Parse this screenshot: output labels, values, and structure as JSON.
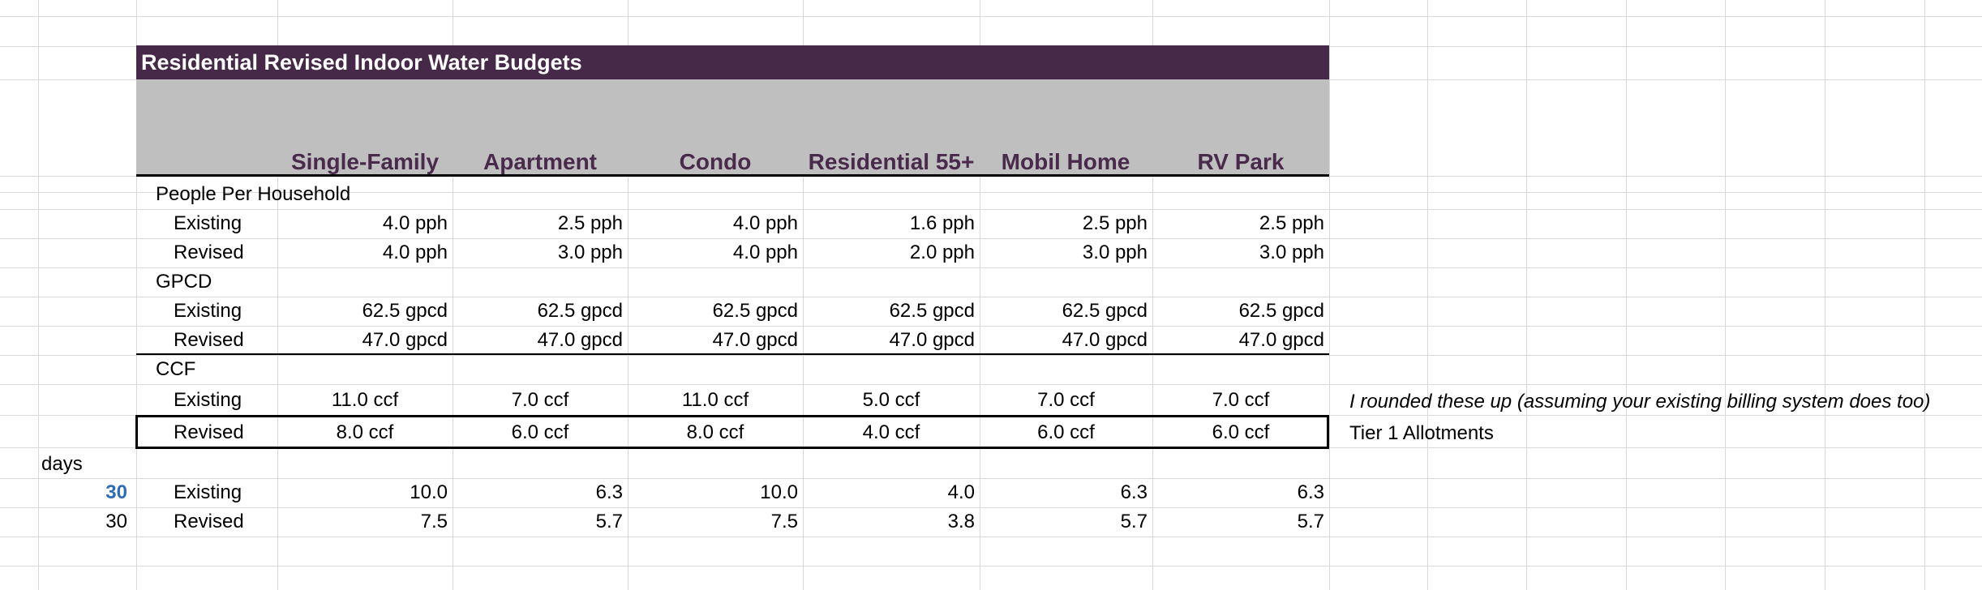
{
  "title": "Residential Revised Indoor Water Budgets",
  "columns": [
    "Single-Family",
    "Apartment",
    "Condo",
    "Residential 55+",
    "Mobil Home",
    "RV Park"
  ],
  "sections": {
    "pph": {
      "label": "People Per Household",
      "existing": {
        "label": "Existing",
        "values": [
          "4.0 pph",
          "2.5 pph",
          "4.0 pph",
          "1.6 pph",
          "2.5 pph",
          "2.5 pph"
        ]
      },
      "revised": {
        "label": "Revised",
        "values": [
          "4.0 pph",
          "3.0 pph",
          "4.0 pph",
          "2.0 pph",
          "3.0 pph",
          "3.0 pph"
        ]
      }
    },
    "gpcd": {
      "label": "GPCD",
      "existing": {
        "label": "Existing",
        "values": [
          "62.5 gpcd",
          "62.5 gpcd",
          "62.5 gpcd",
          "62.5 gpcd",
          "62.5 gpcd",
          "62.5 gpcd"
        ]
      },
      "revised": {
        "label": "Revised",
        "values": [
          "47.0 gpcd",
          "47.0 gpcd",
          "47.0 gpcd",
          "47.0 gpcd",
          "47.0 gpcd",
          "47.0 gpcd"
        ]
      }
    },
    "ccf": {
      "label": "CCF",
      "existing": {
        "label": "Existing",
        "values": [
          "11.0 ccf",
          "7.0 ccf",
          "11.0 ccf",
          "5.0 ccf",
          "7.0 ccf",
          "7.0 ccf"
        ]
      },
      "revised": {
        "label": "Revised",
        "values": [
          "8.0 ccf",
          "6.0 ccf",
          "8.0 ccf",
          "4.0 ccf",
          "6.0 ccf",
          "6.0 ccf"
        ]
      }
    }
  },
  "notes": {
    "rounded": "I rounded these up (assuming your existing billing system does too)",
    "tier": "Tier 1 Allotments"
  },
  "days": {
    "label": "days",
    "existing": {
      "days": "30",
      "label": "Existing",
      "values": [
        "10.0",
        "6.3",
        "10.0",
        "4.0",
        "6.3",
        "6.3"
      ]
    },
    "revised": {
      "days": "30",
      "label": "Revised",
      "values": [
        "7.5",
        "5.7",
        "7.5",
        "3.8",
        "5.7",
        "5.7"
      ]
    }
  },
  "colors": {
    "title_bg": "#462848",
    "header_band": "#bfbfbf",
    "header_text": "#4a2a4c",
    "days_blue": "#2e6db3",
    "gridline": "#d9d9d9"
  }
}
